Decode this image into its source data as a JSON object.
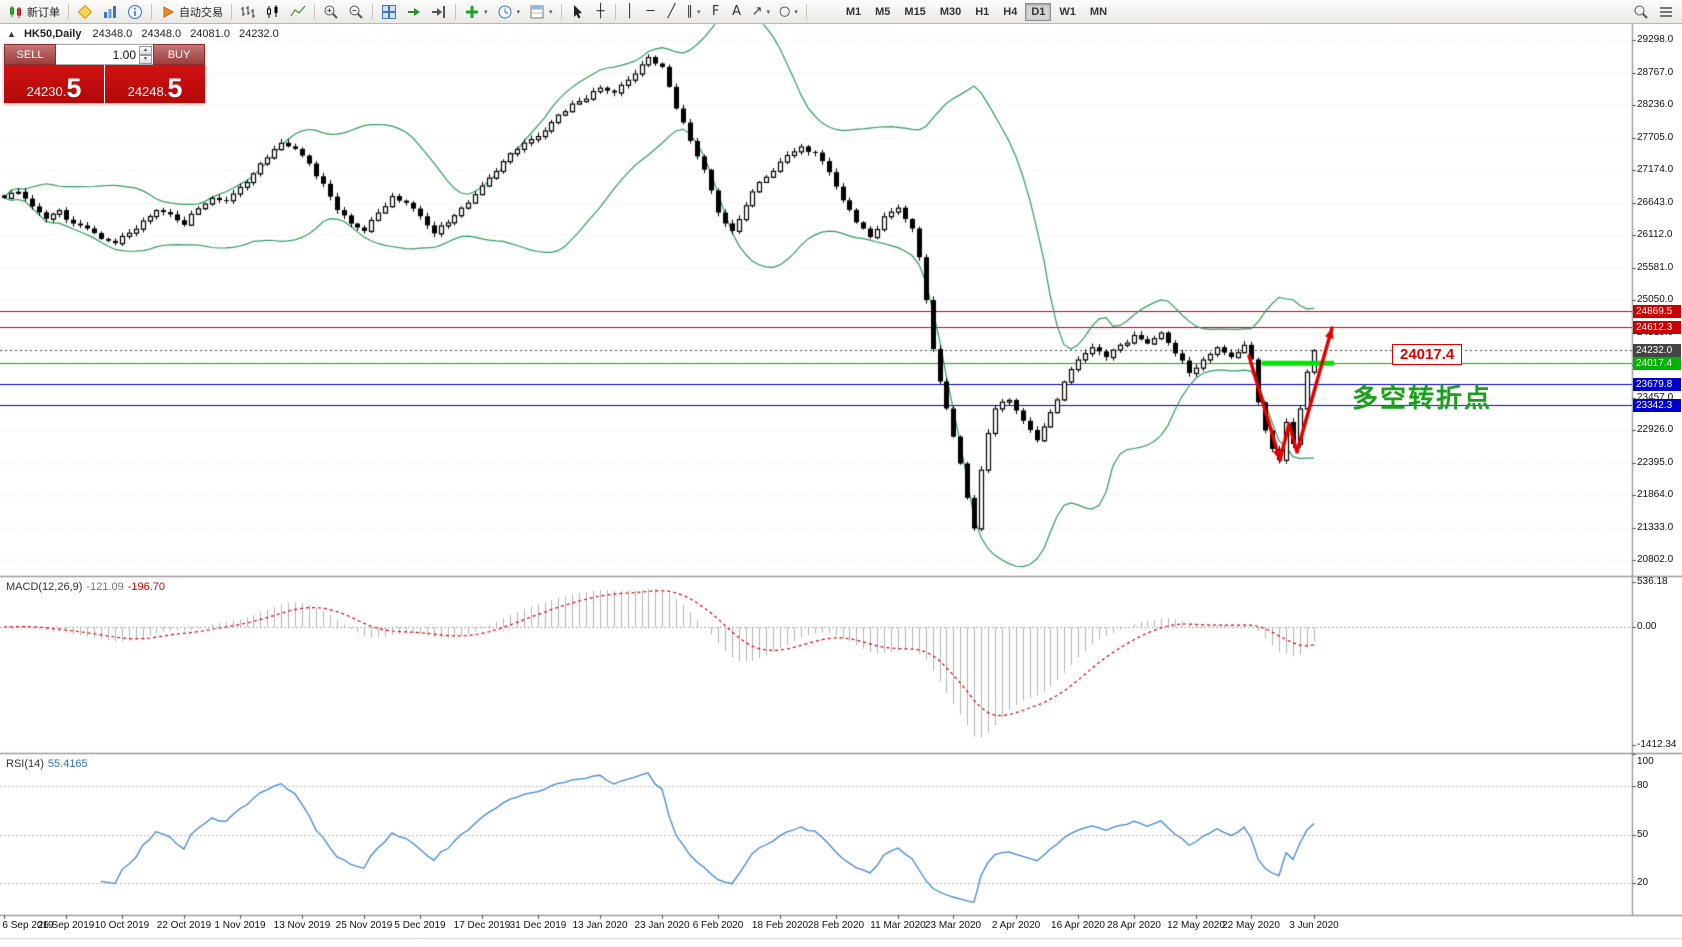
{
  "toolbar": {
    "new_order": "新订单",
    "auto_trading": "自动交易",
    "timeframes": [
      "M1",
      "M5",
      "M15",
      "M30",
      "H1",
      "H4",
      "D1",
      "W1",
      "MN"
    ],
    "active_timeframe": "D1"
  },
  "icons": {
    "collapse": "▲",
    "dropdown": "▾",
    "spin_up": "▲",
    "spin_down": "▼",
    "crosshair": "┼",
    "vertical_line": "│",
    "horizontal_line": "─",
    "trendline": "╱",
    "channel": "∥",
    "fibonacci": "F",
    "text_tool": "A",
    "arrows_tool": "↗",
    "shapes_tool": "○"
  },
  "chart_header": {
    "symbol_period": "HK50,Daily",
    "open": "24348.0",
    "high": "24348.0",
    "low": "24081.0",
    "close": "24232.0"
  },
  "trade_panel": {
    "sell_label": "SELL",
    "buy_label": "BUY",
    "volume": "1.00",
    "sell_price_main": "24230.",
    "sell_price_big": "5",
    "buy_price_main": "24248.",
    "buy_price_big": "5"
  },
  "price_axis": {
    "ticks": [
      29298.0,
      28767.0,
      28236.0,
      27705.0,
      27174.0,
      26643.0,
      26112.0,
      25581.0,
      25050.0,
      24519.0,
      23988.0,
      23457.0,
      22926.0,
      22395.0,
      21864.0,
      21333.0,
      20802.0
    ]
  },
  "macd": {
    "label": "MACD(12,26,9)",
    "value_main": "-121.09",
    "value_signal": "-196.70",
    "axis": [
      {
        "value": 536.18,
        "label": "536.18"
      },
      {
        "value": 0,
        "label": "0.00"
      },
      {
        "value": -1412.34,
        "label": "-1412.34"
      }
    ],
    "scale_max": 600,
    "scale_min": -1500
  },
  "rsi": {
    "label": "RSI(14)",
    "value": "55.4165",
    "axis": [
      {
        "value": 100,
        "label": "100"
      },
      {
        "value": 80,
        "label": "80"
      },
      {
        "value": 50,
        "label": "50"
      },
      {
        "value": 20,
        "label": "20"
      }
    ],
    "levels": [
      80,
      50,
      20
    ]
  },
  "time_axis": {
    "labels": [
      "6 Sep 2019",
      "26 Sep 2019",
      "10 Oct 2019",
      "22 Oct 2019",
      "1 Nov 2019",
      "13 Nov 2019",
      "25 Nov 2019",
      "5 Dec 2019",
      "17 Dec 2019",
      "31 Dec 2019",
      "13 Jan 2020",
      "23 Jan 2020",
      "6 Feb 2020",
      "18 Feb 2020",
      "28 Feb 2020",
      "11 Mar 2020",
      "23 Mar 2020",
      "2 Apr 2020",
      "16 Apr 2020",
      "28 Apr 2020",
      "12 May 2020",
      "22 May 2020",
      "3 Jun 2020"
    ]
  },
  "annotations": {
    "floating_price_label": "24017.4",
    "turning_point_text": "多空转折点"
  },
  "colors": {
    "bull": "#ffffff",
    "bear": "#000000",
    "bollinger": "#2e9e5e",
    "macd_histogram": "#b4b4b4",
    "macd_signal": "#dd0000",
    "rsi_line": "#3f86d8",
    "support_zone": "#00e600",
    "arrow": "#e10000",
    "resistance_line": "#cc0000",
    "support_line_blue": "#0000cc",
    "support_line_green": "#00b300",
    "current_price": "#444444"
  },
  "chart_data": {
    "type": "candlestick",
    "symbol": "HK50",
    "timeframe": "Daily",
    "ohlc_current": {
      "open": 24348.0,
      "high": 24348.0,
      "low": 24081.0,
      "close": 24232.0
    },
    "candle_count": 190,
    "price_scale": {
      "top_price": 29560,
      "bottom_price": 20560
    },
    "indicators": {
      "bollinger": {
        "period": 20,
        "deviation": 2
      },
      "macd": {
        "fast": 12,
        "slow": 26,
        "signal": 9,
        "value": -121.09,
        "signal_value": -196.7
      },
      "rsi": {
        "period": 14,
        "value": 55.4165
      }
    },
    "horizontal_lines": [
      {
        "price": 24869.5,
        "tag": "24869.5",
        "color": "#cc0000",
        "style": "solid"
      },
      {
        "price": 24612.3,
        "tag": "24612.3",
        "color": "#cc0000",
        "style": "solid"
      },
      {
        "price": 24232.0,
        "tag": "24232.0",
        "color": "#444444",
        "style": "dotted"
      },
      {
        "price": 24017.4,
        "tag": "24017.4",
        "color": "#00b300",
        "style": "solid"
      },
      {
        "price": 23679.8,
        "tag": "23679.8",
        "color": "#0000cc",
        "style": "solid"
      },
      {
        "price": 23342.3,
        "tag": "23342.3",
        "color": "#0000cc",
        "style": "solid"
      }
    ],
    "support_zone": {
      "price": 24017.4,
      "segment_x": [
        1262,
        1334
      ]
    },
    "w_arrow": {
      "leg1": [
        [
          1249,
          356
        ],
        [
          1280,
          460
        ]
      ],
      "leg2": [
        [
          1280,
          460
        ],
        [
          1289,
          424
        ],
        [
          1297,
          452
        ],
        [
          1332,
          328
        ]
      ]
    },
    "close_anchors": [
      [
        0,
        26720
      ],
      [
        2,
        26820
      ],
      [
        4,
        26580
      ],
      [
        6,
        26380
      ],
      [
        8,
        26520
      ],
      [
        10,
        26300
      ],
      [
        12,
        26220
      ],
      [
        14,
        26050
      ],
      [
        16,
        25980
      ],
      [
        18,
        26150
      ],
      [
        20,
        26350
      ],
      [
        22,
        26520
      ],
      [
        24,
        26450
      ],
      [
        26,
        26280
      ],
      [
        28,
        26550
      ],
      [
        30,
        26720
      ],
      [
        32,
        26680
      ],
      [
        34,
        26900
      ],
      [
        36,
        27120
      ],
      [
        38,
        27380
      ],
      [
        40,
        27620
      ],
      [
        42,
        27520
      ],
      [
        44,
        27280
      ],
      [
        46,
        26950
      ],
      [
        48,
        26520
      ],
      [
        50,
        26300
      ],
      [
        52,
        26180
      ],
      [
        54,
        26480
      ],
      [
        56,
        26750
      ],
      [
        58,
        26640
      ],
      [
        60,
        26420
      ],
      [
        62,
        26140
      ],
      [
        64,
        26320
      ],
      [
        66,
        26560
      ],
      [
        68,
        26780
      ],
      [
        70,
        27050
      ],
      [
        72,
        27320
      ],
      [
        74,
        27520
      ],
      [
        76,
        27680
      ],
      [
        78,
        27820
      ],
      [
        80,
        28080
      ],
      [
        82,
        28260
      ],
      [
        84,
        28340
      ],
      [
        86,
        28520
      ],
      [
        88,
        28440
      ],
      [
        90,
        28650
      ],
      [
        92,
        28900
      ],
      [
        93,
        29020
      ],
      [
        95,
        28860
      ],
      [
        97,
        28180
      ],
      [
        99,
        27650
      ],
      [
        101,
        27180
      ],
      [
        103,
        26480
      ],
      [
        105,
        26180
      ],
      [
        107,
        26600
      ],
      [
        109,
        26980
      ],
      [
        111,
        27160
      ],
      [
        113,
        27420
      ],
      [
        115,
        27560
      ],
      [
        117,
        27460
      ],
      [
        119,
        27140
      ],
      [
        121,
        26680
      ],
      [
        123,
        26320
      ],
      [
        125,
        26080
      ],
      [
        127,
        26420
      ],
      [
        129,
        26560
      ],
      [
        131,
        26220
      ],
      [
        132,
        25750
      ],
      [
        133,
        25050
      ],
      [
        134,
        24250
      ],
      [
        135,
        23720
      ],
      [
        136,
        23280
      ],
      [
        137,
        22820
      ],
      [
        138,
        22380
      ],
      [
        139,
        21820
      ],
      [
        140,
        21320
      ],
      [
        141,
        22280
      ],
      [
        142,
        22880
      ],
      [
        143,
        23280
      ],
      [
        145,
        23420
      ],
      [
        147,
        23080
      ],
      [
        149,
        22760
      ],
      [
        151,
        23220
      ],
      [
        153,
        23720
      ],
      [
        155,
        24080
      ],
      [
        157,
        24280
      ],
      [
        159,
        24120
      ],
      [
        161,
        24320
      ],
      [
        163,
        24480
      ],
      [
        165,
        24340
      ],
      [
        167,
        24520
      ],
      [
        169,
        24180
      ],
      [
        171,
        23860
      ],
      [
        173,
        24080
      ],
      [
        175,
        24280
      ],
      [
        177,
        24120
      ],
      [
        179,
        24320
      ],
      [
        180,
        24080
      ],
      [
        181,
        23380
      ],
      [
        182,
        22920
      ],
      [
        183,
        22620
      ],
      [
        184,
        22440
      ],
      [
        185,
        23060
      ],
      [
        186,
        22700
      ],
      [
        187,
        23280
      ],
      [
        188,
        23880
      ],
      [
        189,
        24232
      ]
    ]
  }
}
